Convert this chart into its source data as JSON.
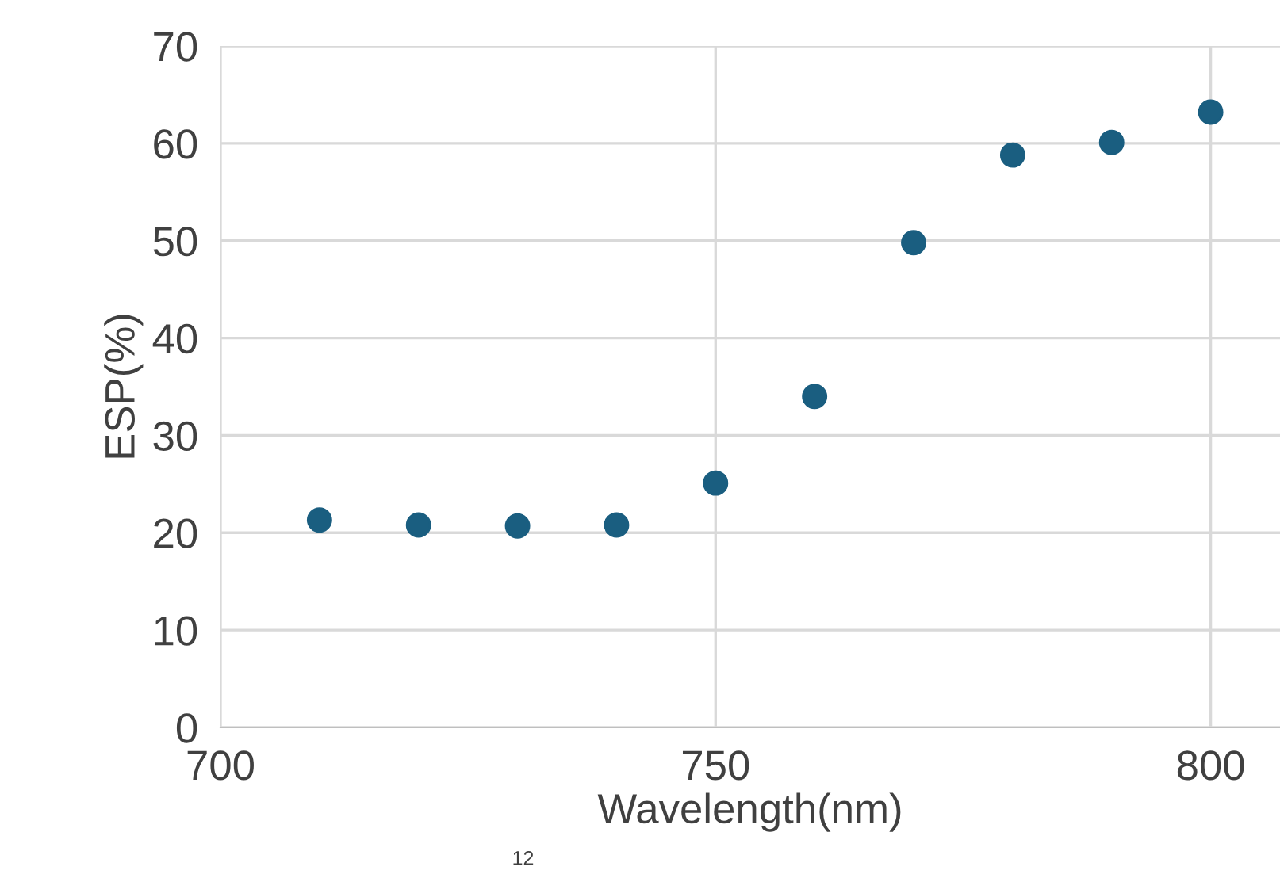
{
  "chart_data": {
    "type": "scatter",
    "xlabel": "Wavelength(nm)",
    "ylabel": "ESP(%)",
    "x": [
      710,
      720,
      730,
      740,
      750,
      760,
      770,
      780,
      790,
      800
    ],
    "series": [
      {
        "color": "#1a5e80",
        "values": [
          21.3,
          20.8,
          20.7,
          20.8,
          25.1,
          34.0,
          49.8,
          58.8,
          60.1,
          63.2
        ]
      }
    ],
    "xlim": [
      700,
      807
    ],
    "xticks": [
      700,
      750,
      800
    ],
    "ylim": [
      0,
      70
    ],
    "yticks": [
      0,
      10,
      20,
      30,
      40,
      50,
      60,
      70
    ],
    "grid": true,
    "marker": "circle",
    "annotations": [
      "12"
    ]
  }
}
